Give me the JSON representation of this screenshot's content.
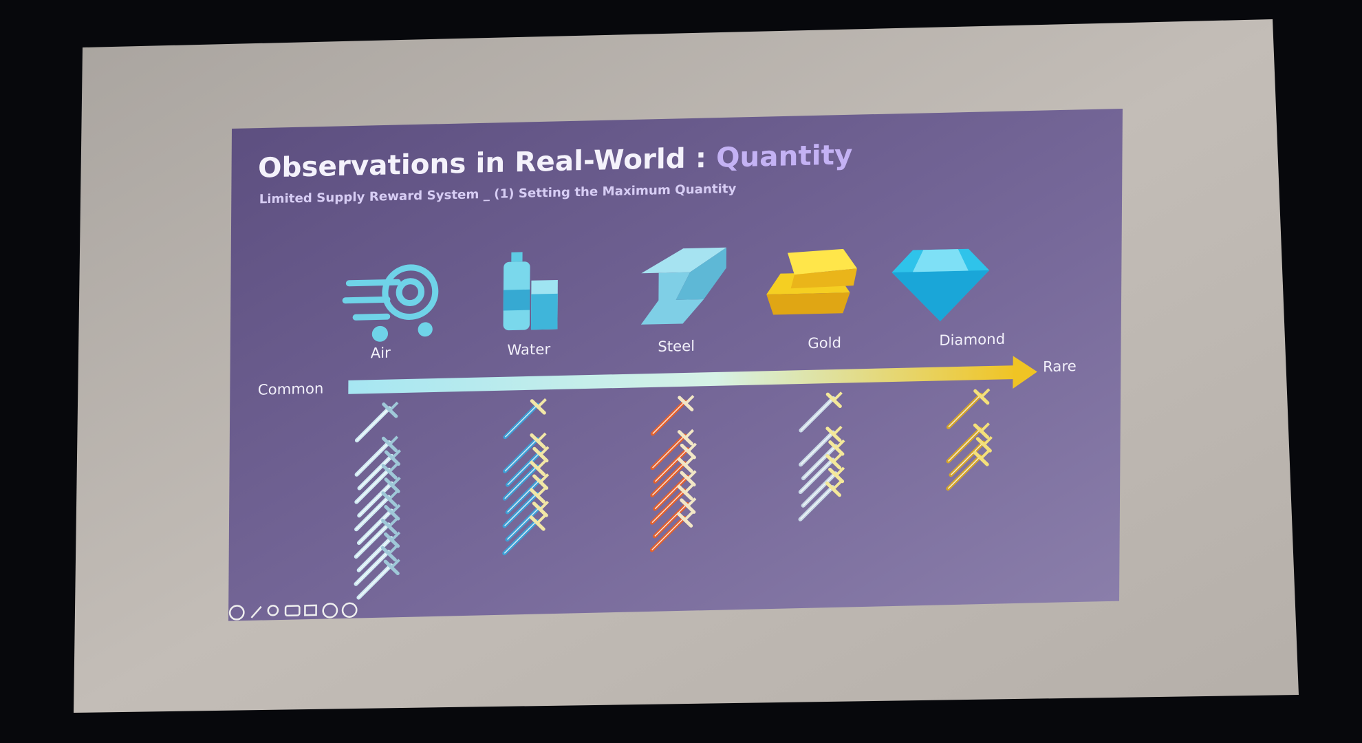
{
  "slide": {
    "title": "Observations in Real-World :",
    "title_highlight": "Quantity",
    "subtitle": "Limited Supply Reward System _ (1) Setting the Maximum Quantity",
    "scale": {
      "start": "Common",
      "end": "Rare"
    },
    "items": [
      {
        "label": "Air"
      },
      {
        "label": "Water"
      },
      {
        "label": "Steel"
      },
      {
        "label": "Gold"
      },
      {
        "label": "Diamond"
      }
    ]
  }
}
